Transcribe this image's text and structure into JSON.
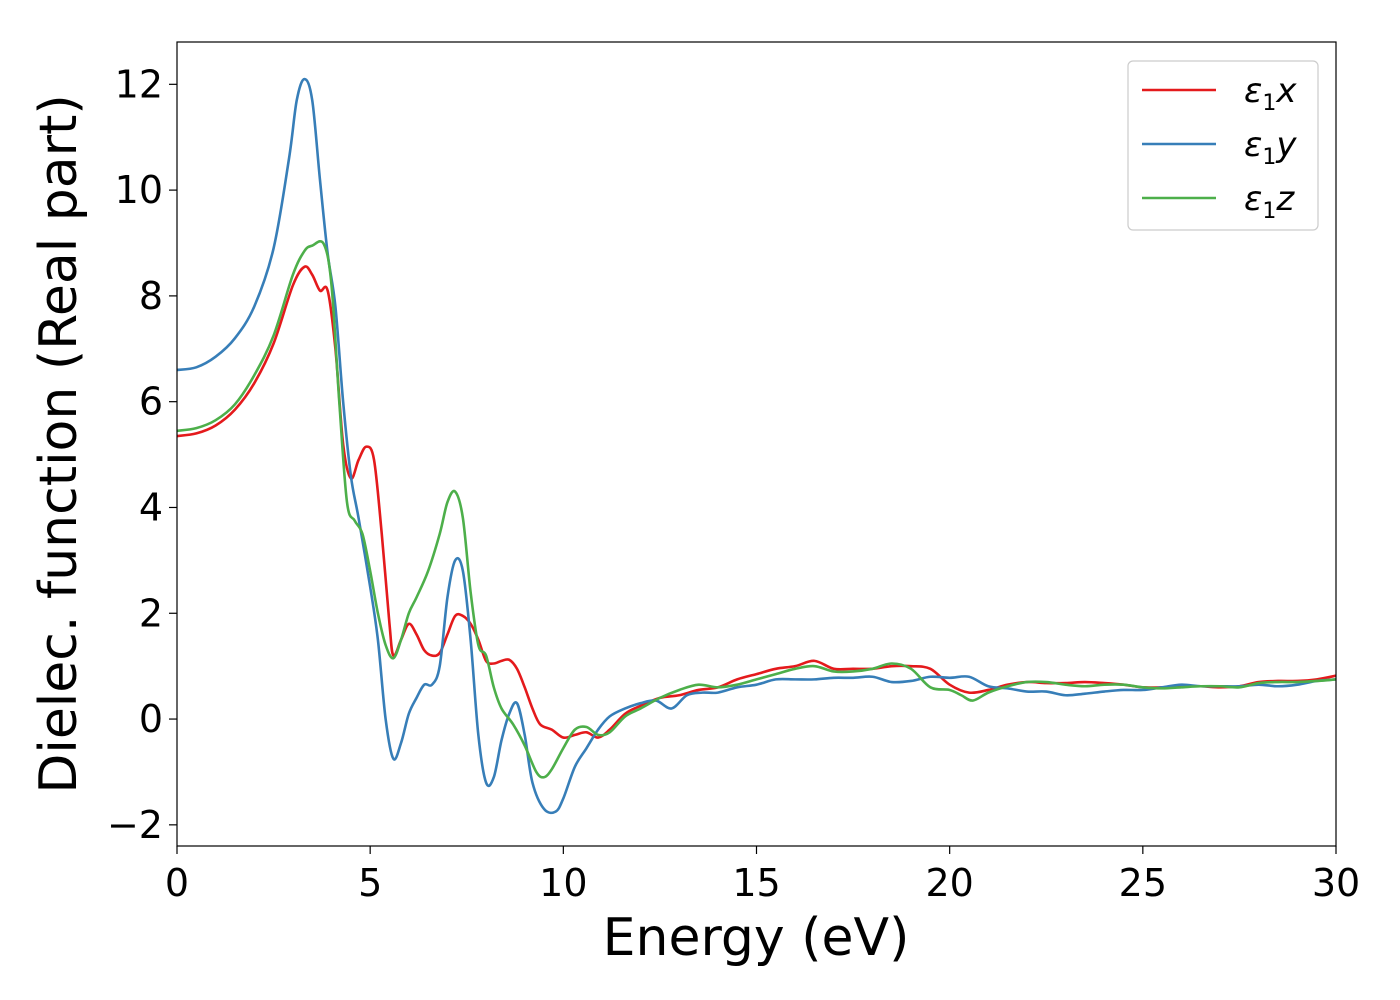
{
  "chart_data": {
    "type": "line",
    "xlabel": "Energy (eV)",
    "ylabel": "Dielec. function (Real part)",
    "xlim": [
      0,
      30
    ],
    "ylim": [
      -2.4,
      12.8
    ],
    "xticks": [
      0,
      5,
      10,
      15,
      20,
      25,
      30
    ],
    "xtick_labels": [
      "0",
      "5",
      "10",
      "15",
      "20",
      "25",
      "30"
    ],
    "yticks": [
      -2,
      0,
      2,
      4,
      6,
      8,
      10,
      12
    ],
    "ytick_labels": [
      "−2",
      "0",
      "2",
      "4",
      "6",
      "8",
      "10",
      "12"
    ],
    "grid": false,
    "legend_position": "top-right",
    "series": [
      {
        "name": "ε₁x",
        "symbol": "ε",
        "subscript": "1",
        "suffix": "x",
        "color": "#e41a1c",
        "points": [
          [
            0,
            5.35
          ],
          [
            0.5,
            5.4
          ],
          [
            1,
            5.55
          ],
          [
            1.5,
            5.85
          ],
          [
            2,
            6.35
          ],
          [
            2.5,
            7.1
          ],
          [
            3,
            8.2
          ],
          [
            3.3,
            8.55
          ],
          [
            3.5,
            8.4
          ],
          [
            3.7,
            8.1
          ],
          [
            3.9,
            8.1
          ],
          [
            4.1,
            7.0
          ],
          [
            4.3,
            5.2
          ],
          [
            4.5,
            4.55
          ],
          [
            4.7,
            4.9
          ],
          [
            4.9,
            5.15
          ],
          [
            5.1,
            4.9
          ],
          [
            5.3,
            3.5
          ],
          [
            5.5,
            1.8
          ],
          [
            5.6,
            1.2
          ],
          [
            5.8,
            1.5
          ],
          [
            6.0,
            1.8
          ],
          [
            6.2,
            1.6
          ],
          [
            6.4,
            1.3
          ],
          [
            6.6,
            1.2
          ],
          [
            6.8,
            1.25
          ],
          [
            7.0,
            1.6
          ],
          [
            7.2,
            1.95
          ],
          [
            7.4,
            1.95
          ],
          [
            7.6,
            1.8
          ],
          [
            7.8,
            1.5
          ],
          [
            8.0,
            1.1
          ],
          [
            8.2,
            1.05
          ],
          [
            8.4,
            1.1
          ],
          [
            8.6,
            1.12
          ],
          [
            8.8,
            0.95
          ],
          [
            9.0,
            0.6
          ],
          [
            9.2,
            0.2
          ],
          [
            9.4,
            -0.1
          ],
          [
            9.7,
            -0.2
          ],
          [
            10.0,
            -0.35
          ],
          [
            10.3,
            -0.3
          ],
          [
            10.6,
            -0.25
          ],
          [
            10.9,
            -0.35
          ],
          [
            11.2,
            -0.2
          ],
          [
            11.6,
            0.1
          ],
          [
            12.0,
            0.25
          ],
          [
            12.5,
            0.4
          ],
          [
            13,
            0.45
          ],
          [
            13.5,
            0.55
          ],
          [
            14,
            0.6
          ],
          [
            14.5,
            0.75
          ],
          [
            15,
            0.85
          ],
          [
            15.5,
            0.95
          ],
          [
            16,
            1.0
          ],
          [
            16.5,
            1.1
          ],
          [
            17,
            0.95
          ],
          [
            17.5,
            0.95
          ],
          [
            18,
            0.95
          ],
          [
            18.5,
            1.0
          ],
          [
            19,
            1.0
          ],
          [
            19.5,
            0.95
          ],
          [
            20,
            0.65
          ],
          [
            20.5,
            0.5
          ],
          [
            21,
            0.55
          ],
          [
            21.5,
            0.65
          ],
          [
            22,
            0.7
          ],
          [
            22.5,
            0.68
          ],
          [
            23,
            0.68
          ],
          [
            23.5,
            0.7
          ],
          [
            24,
            0.68
          ],
          [
            24.5,
            0.65
          ],
          [
            25,
            0.6
          ],
          [
            25.5,
            0.6
          ],
          [
            26,
            0.62
          ],
          [
            26.5,
            0.62
          ],
          [
            27,
            0.6
          ],
          [
            27.5,
            0.62
          ],
          [
            28,
            0.7
          ],
          [
            28.5,
            0.72
          ],
          [
            29,
            0.72
          ],
          [
            29.5,
            0.75
          ],
          [
            30,
            0.82
          ]
        ]
      },
      {
        "name": "ε₁y",
        "symbol": "ε",
        "subscript": "1",
        "suffix": "y",
        "color": "#377eb8",
        "points": [
          [
            0,
            6.6
          ],
          [
            0.5,
            6.65
          ],
          [
            1,
            6.85
          ],
          [
            1.5,
            7.2
          ],
          [
            2,
            7.8
          ],
          [
            2.5,
            8.9
          ],
          [
            2.9,
            10.6
          ],
          [
            3.1,
            11.7
          ],
          [
            3.3,
            12.1
          ],
          [
            3.5,
            11.7
          ],
          [
            3.7,
            10.2
          ],
          [
            3.9,
            8.8
          ],
          [
            4.1,
            7.8
          ],
          [
            4.3,
            6.0
          ],
          [
            4.5,
            4.6
          ],
          [
            4.7,
            3.8
          ],
          [
            5.0,
            2.5
          ],
          [
            5.2,
            1.5
          ],
          [
            5.4,
            0.0
          ],
          [
            5.6,
            -0.75
          ],
          [
            5.8,
            -0.45
          ],
          [
            6.0,
            0.1
          ],
          [
            6.2,
            0.4
          ],
          [
            6.4,
            0.65
          ],
          [
            6.6,
            0.65
          ],
          [
            6.8,
            1.0
          ],
          [
            7.0,
            2.3
          ],
          [
            7.2,
            3.0
          ],
          [
            7.4,
            2.8
          ],
          [
            7.6,
            1.5
          ],
          [
            7.8,
            -0.3
          ],
          [
            8.0,
            -1.2
          ],
          [
            8.2,
            -1.1
          ],
          [
            8.4,
            -0.4
          ],
          [
            8.6,
            0.1
          ],
          [
            8.8,
            0.3
          ],
          [
            9.0,
            -0.3
          ],
          [
            9.2,
            -1.2
          ],
          [
            9.5,
            -1.7
          ],
          [
            9.8,
            -1.75
          ],
          [
            10.0,
            -1.5
          ],
          [
            10.3,
            -0.9
          ],
          [
            10.6,
            -0.55
          ],
          [
            10.9,
            -0.2
          ],
          [
            11.2,
            0.05
          ],
          [
            11.6,
            0.2
          ],
          [
            12.0,
            0.3
          ],
          [
            12.4,
            0.35
          ],
          [
            12.8,
            0.2
          ],
          [
            13.2,
            0.45
          ],
          [
            13.6,
            0.5
          ],
          [
            14.0,
            0.5
          ],
          [
            14.5,
            0.6
          ],
          [
            15,
            0.65
          ],
          [
            15.5,
            0.75
          ],
          [
            16,
            0.75
          ],
          [
            16.5,
            0.75
          ],
          [
            17,
            0.78
          ],
          [
            17.5,
            0.78
          ],
          [
            18,
            0.8
          ],
          [
            18.5,
            0.7
          ],
          [
            19,
            0.72
          ],
          [
            19.5,
            0.8
          ],
          [
            20,
            0.78
          ],
          [
            20.5,
            0.8
          ],
          [
            21,
            0.62
          ],
          [
            21.5,
            0.58
          ],
          [
            22,
            0.52
          ],
          [
            22.5,
            0.52
          ],
          [
            23,
            0.45
          ],
          [
            23.5,
            0.48
          ],
          [
            24,
            0.52
          ],
          [
            24.5,
            0.55
          ],
          [
            25,
            0.55
          ],
          [
            25.5,
            0.6
          ],
          [
            26,
            0.65
          ],
          [
            26.5,
            0.62
          ],
          [
            27,
            0.62
          ],
          [
            27.5,
            0.62
          ],
          [
            28,
            0.65
          ],
          [
            28.5,
            0.62
          ],
          [
            29,
            0.65
          ],
          [
            29.5,
            0.72
          ],
          [
            30,
            0.75
          ]
        ]
      },
      {
        "name": "ε₁z",
        "symbol": "ε",
        "subscript": "1",
        "suffix": "z",
        "color": "#4daf4a",
        "points": [
          [
            0,
            5.45
          ],
          [
            0.5,
            5.5
          ],
          [
            1,
            5.65
          ],
          [
            1.5,
            5.95
          ],
          [
            2,
            6.5
          ],
          [
            2.5,
            7.25
          ],
          [
            3,
            8.4
          ],
          [
            3.3,
            8.85
          ],
          [
            3.5,
            8.95
          ],
          [
            3.8,
            8.98
          ],
          [
            4.0,
            8.2
          ],
          [
            4.2,
            6.0
          ],
          [
            4.4,
            4.1
          ],
          [
            4.6,
            3.75
          ],
          [
            4.8,
            3.5
          ],
          [
            5.0,
            2.8
          ],
          [
            5.2,
            2.0
          ],
          [
            5.4,
            1.4
          ],
          [
            5.6,
            1.15
          ],
          [
            5.8,
            1.5
          ],
          [
            6.0,
            2.0
          ],
          [
            6.2,
            2.3
          ],
          [
            6.5,
            2.8
          ],
          [
            6.8,
            3.5
          ],
          [
            7.0,
            4.1
          ],
          [
            7.2,
            4.3
          ],
          [
            7.4,
            3.8
          ],
          [
            7.6,
            2.4
          ],
          [
            7.8,
            1.4
          ],
          [
            8.0,
            1.2
          ],
          [
            8.2,
            0.6
          ],
          [
            8.4,
            0.2
          ],
          [
            8.7,
            -0.1
          ],
          [
            9.0,
            -0.5
          ],
          [
            9.3,
            -1.0
          ],
          [
            9.5,
            -1.1
          ],
          [
            9.7,
            -0.95
          ],
          [
            10.0,
            -0.55
          ],
          [
            10.3,
            -0.2
          ],
          [
            10.6,
            -0.15
          ],
          [
            10.9,
            -0.3
          ],
          [
            11.2,
            -0.25
          ],
          [
            11.6,
            0.05
          ],
          [
            12.0,
            0.2
          ],
          [
            12.5,
            0.4
          ],
          [
            13,
            0.55
          ],
          [
            13.5,
            0.65
          ],
          [
            14,
            0.6
          ],
          [
            14.5,
            0.65
          ],
          [
            15,
            0.75
          ],
          [
            15.5,
            0.85
          ],
          [
            16,
            0.95
          ],
          [
            16.5,
            1.0
          ],
          [
            17,
            0.9
          ],
          [
            17.5,
            0.9
          ],
          [
            18,
            0.95
          ],
          [
            18.5,
            1.05
          ],
          [
            19,
            0.95
          ],
          [
            19.5,
            0.6
          ],
          [
            20,
            0.55
          ],
          [
            20.3,
            0.45
          ],
          [
            20.6,
            0.35
          ],
          [
            21,
            0.5
          ],
          [
            21.5,
            0.62
          ],
          [
            22,
            0.7
          ],
          [
            22.5,
            0.7
          ],
          [
            23,
            0.65
          ],
          [
            23.5,
            0.62
          ],
          [
            24,
            0.65
          ],
          [
            24.5,
            0.65
          ],
          [
            25,
            0.6
          ],
          [
            25.5,
            0.58
          ],
          [
            26,
            0.6
          ],
          [
            26.5,
            0.62
          ],
          [
            27,
            0.62
          ],
          [
            27.5,
            0.6
          ],
          [
            28,
            0.68
          ],
          [
            28.5,
            0.7
          ],
          [
            29,
            0.7
          ],
          [
            29.5,
            0.72
          ],
          [
            30,
            0.75
          ]
        ]
      }
    ]
  }
}
